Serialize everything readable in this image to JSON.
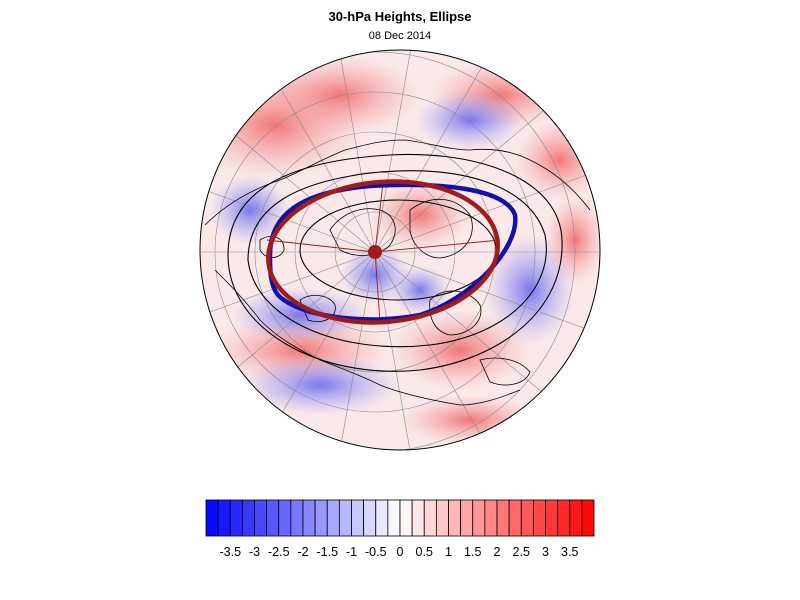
{
  "header": {
    "title": "30-hPa Heights, Ellipse",
    "date": "08 Dec 2014"
  },
  "map": {
    "projection": "north-polar-stereographic",
    "field": "30-hPa height anomaly (standardized)",
    "contour_color": "#000000",
    "ellipse_a_color": "#1010b0",
    "ellipse_b_color": "#a01c1c",
    "center_marker_color": "#a01c1c"
  },
  "colorbar": {
    "labels": [
      "-3.5",
      "-3",
      "-2.5",
      "-2",
      "-1.5",
      "-1",
      "-0.5",
      "0",
      "0.5",
      "1",
      "1.5",
      "2",
      "2.5",
      "3",
      "3.5"
    ],
    "min": -4,
    "max": 4,
    "step": 0.25,
    "low_color": "#0000ff",
    "mid_color": "#ffffff",
    "high_color": "#ff0000"
  }
}
